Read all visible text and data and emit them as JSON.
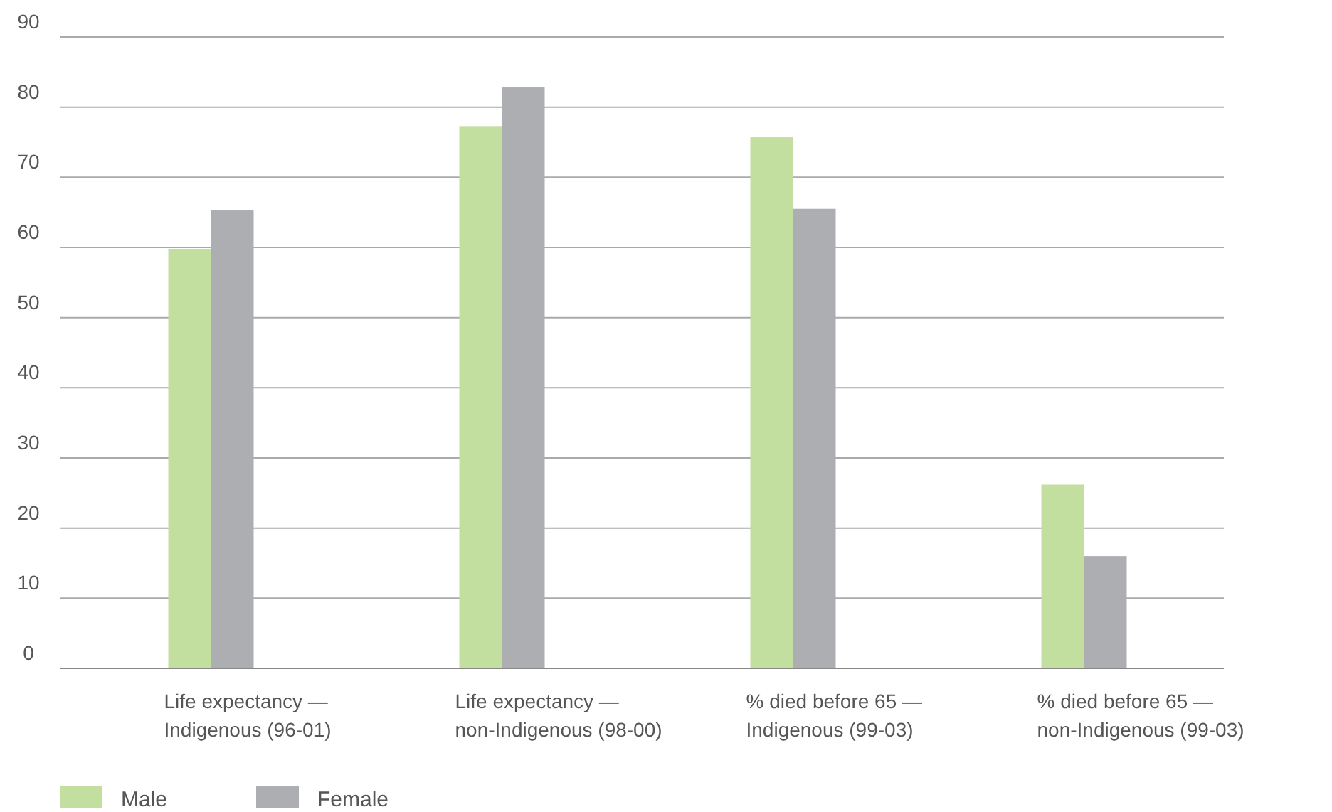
{
  "chart_data": {
    "type": "bar",
    "categories": [
      "Life expectancy — Indigenous (96-01)",
      "Life expectancy — non-Indigenous (98-00)",
      "% died before 65 — Indigenous (99-03)",
      "% died before 65 — non-Indigenous (99-03)"
    ],
    "series": [
      {
        "name": "Male",
        "color": "#c3df9f",
        "values": [
          59.8,
          77.3,
          75.7,
          26.2
        ]
      },
      {
        "name": "Female",
        "color": "#adaeb2",
        "values": [
          65.3,
          82.8,
          65.5,
          16.0
        ]
      }
    ],
    "ylim": [
      0,
      90
    ],
    "yticks": [
      0,
      10,
      20,
      30,
      40,
      50,
      60,
      70,
      80,
      90
    ],
    "grid": "y",
    "legend": "bottom left"
  }
}
